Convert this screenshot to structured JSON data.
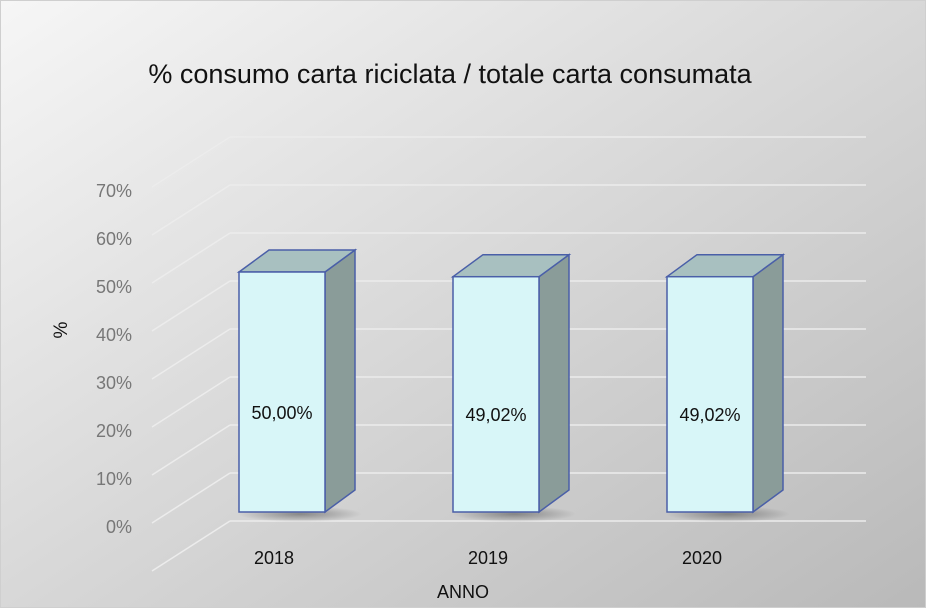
{
  "chart_data": {
    "type": "bar",
    "title": "% consumo carta riciclata / totale carta consumata",
    "x_label": "ANNO",
    "y_label": "%",
    "categories": [
      "2018",
      "2019",
      "2020"
    ],
    "values": [
      50,
      49.02,
      49.02
    ],
    "value_labels": [
      "50,00%",
      "49,02%",
      "49,02%"
    ],
    "color": "#d8f6f8",
    "ylim": [
      0,
      80
    ],
    "yticks": [
      {
        "value": 0,
        "label": "0%"
      },
      {
        "value": 10,
        "label": "10%"
      },
      {
        "value": 20,
        "label": "20%"
      },
      {
        "value": 30,
        "label": "30%"
      },
      {
        "value": 40,
        "label": "40%"
      },
      {
        "value": 50,
        "label": "50%"
      },
      {
        "value": 60,
        "label": "60%"
      },
      {
        "value": 70,
        "label": "70%"
      }
    ],
    "grid": true
  }
}
